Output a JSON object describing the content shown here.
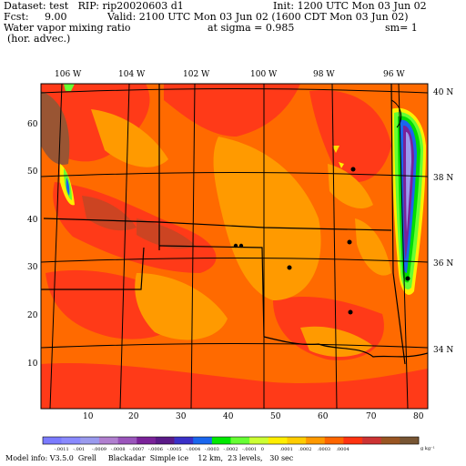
{
  "header": {
    "dataset": "Dataset: test   RIP: rip20020603 d1",
    "init": "Init: 1200 UTC Mon 03 Jun 02",
    "fcst": "Fcst:     9.00",
    "valid": "Valid: 2100 UTC Mon 03 Jun 02 (1600 CDT Mon 03 Jun 02)",
    "field": "Water vapor mixing ratio",
    "level": "at sigma = 0.985",
    "sm": "sm= 1",
    "advec": "(hor. advec.)"
  },
  "lon_labels": [
    "106 W",
    "104 W",
    "102 W",
    "100 W",
    "98 W",
    "96 W"
  ],
  "lat_labels": [
    "40 N",
    "38 N",
    "36 N",
    "34 N"
  ],
  "x_ticks": [
    "10",
    "20",
    "30",
    "40",
    "50",
    "60",
    "70",
    "80"
  ],
  "y_ticks": [
    "10",
    "20",
    "30",
    "40",
    "50",
    "60"
  ],
  "colorbar": {
    "colors": [
      "#7b7bff",
      "#8a8aff",
      "#9a9aee",
      "#b07fcf",
      "#9a55bb",
      "#7a2299",
      "#5b1a88",
      "#3a30c8",
      "#1a66ee",
      "#00e800",
      "#66ff33",
      "#ccff33",
      "#ffee00",
      "#ffcc00",
      "#ff9900",
      "#ff6600",
      "#ff3311",
      "#cc3333",
      "#995522",
      "#775533"
    ],
    "labels": [
      "-.0011",
      "-.001",
      "-.0009",
      "-.0008",
      "-.0007",
      "-.0006",
      "-.0005",
      "-.0004",
      "-.0003",
      "-.0002",
      "-.0001",
      "0",
      ".0001",
      ".0002",
      ".0003",
      ".0004"
    ],
    "unit": "g kg⁻¹"
  },
  "footer": "Model info: V3.5.0  Grell     Blackadar  Simple ice    12 km,  23 levels,   30 sec"
}
